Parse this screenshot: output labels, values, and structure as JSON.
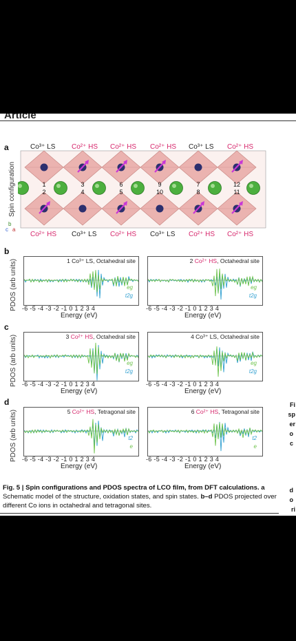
{
  "header": {
    "journal_label": "Article"
  },
  "figure": {
    "panel_a": {
      "label": "a",
      "y_label": "Spin configuration",
      "axis": {
        "b": "b",
        "c": "c",
        "a": "a"
      },
      "top_ions": [
        {
          "text": "Co³⁺ LS",
          "spin": "ls"
        },
        {
          "text": "Co²⁺ HS",
          "spin": "hs"
        },
        {
          "text": "Co²⁺ HS",
          "spin": "hs"
        },
        {
          "text": "Co²⁺ HS",
          "spin": "hs"
        },
        {
          "text": "Co³⁺ LS",
          "spin": "ls"
        },
        {
          "text": "Co²⁺ HS",
          "spin": "hs"
        }
      ],
      "bottom_ions": [
        {
          "text": "Co²⁺ HS",
          "spin": "hs"
        },
        {
          "text": "Co³⁺ LS",
          "spin": "ls"
        },
        {
          "text": "Co²⁺ HS",
          "spin": "hs"
        },
        {
          "text": "Co³⁺ LS",
          "spin": "ls"
        },
        {
          "text": "Co²⁺ HS",
          "spin": "hs"
        },
        {
          "text": "Co²⁺ HS",
          "spin": "hs"
        }
      ],
      "site_numbers_top": [
        "1",
        "3",
        "6",
        "9",
        "7",
        "12"
      ],
      "site_numbers_bottom": [
        "2",
        "4",
        "5",
        "10",
        "8",
        "11"
      ]
    },
    "pdos_panels": [
      {
        "label": "b",
        "title_pre": "1 Co³⁺ ",
        "title_hs": "",
        "title_rest": "LS, Octahedral site",
        "legend": [
          "eg",
          "t2g"
        ]
      },
      {
        "label": "",
        "title_pre": "2 ",
        "title_hs": "Co²⁺ HS",
        "title_rest": ", Octahedral site",
        "legend": [
          "eg",
          "t2g"
        ]
      },
      {
        "label": "c",
        "title_pre": "3 ",
        "title_hs": "Co²⁺ HS",
        "title_rest": ", Octahedral site",
        "legend": [
          "eg",
          "t2g"
        ]
      },
      {
        "label": "",
        "title_pre": "4 Co³⁺ ",
        "title_hs": "",
        "title_rest": "LS, Octahedral site",
        "legend": [
          "eg",
          "t2g"
        ]
      },
      {
        "label": "d",
        "title_pre": "5 ",
        "title_hs": "Co²⁺ HS",
        "title_rest": ", Tetragonal site",
        "legend": [
          "t2",
          "e"
        ]
      },
      {
        "label": "",
        "title_pre": "6 ",
        "title_hs": "Co²⁺ HS",
        "title_rest": ", Tetragonal site",
        "legend": [
          "t2",
          "e"
        ]
      }
    ],
    "pdos_y_label": "PDOS (arb units)",
    "energy_ticks": "-6 -5 -4 -3 -2 -1 0 1 2 3 4",
    "energy_label": "Energy (eV)",
    "colors": {
      "eg": "#6cc24a",
      "t2g": "#2f9fd0",
      "hs_text": "#d6266b",
      "octahedra": "#e8a8a4",
      "oxygen": "#4caf3e",
      "cobalt": "#2c2f6e",
      "spin_arrow": "#c837d6"
    }
  },
  "caption": {
    "fig_bold": "Fig. 5 | Spin configurations and PDOS spectra of LCO film, from DFT calculations.",
    "a_label": "a",
    "a_text": " Schematic model of the structure, oxidation states, and spin states.",
    "bd_label": "b–d",
    "bd_text": " PDOS projected over different Co ions in octahedral and tetragonal sites."
  },
  "side_letters": [
    "Fi",
    "sp",
    "er",
    "o",
    "c",
    "d",
    "o",
    "ri"
  ]
}
